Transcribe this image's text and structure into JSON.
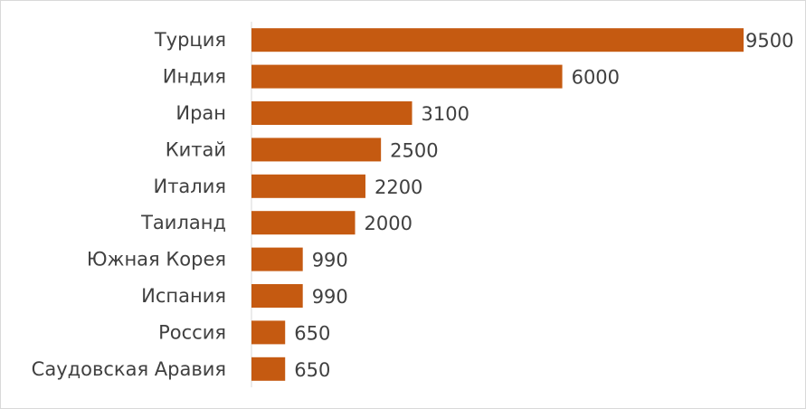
{
  "chart_data": {
    "type": "bar",
    "orientation": "horizontal",
    "categories": [
      "Турция",
      "Индия",
      "Иран",
      "Китай",
      "Италия",
      "Таиланд",
      "Южная Корея",
      "Испания",
      "Россия",
      "Саудовская Аравия"
    ],
    "values": [
      9500,
      6000,
      3100,
      2500,
      2200,
      2000,
      990,
      990,
      650,
      650
    ],
    "color": "#c55a11"
  }
}
